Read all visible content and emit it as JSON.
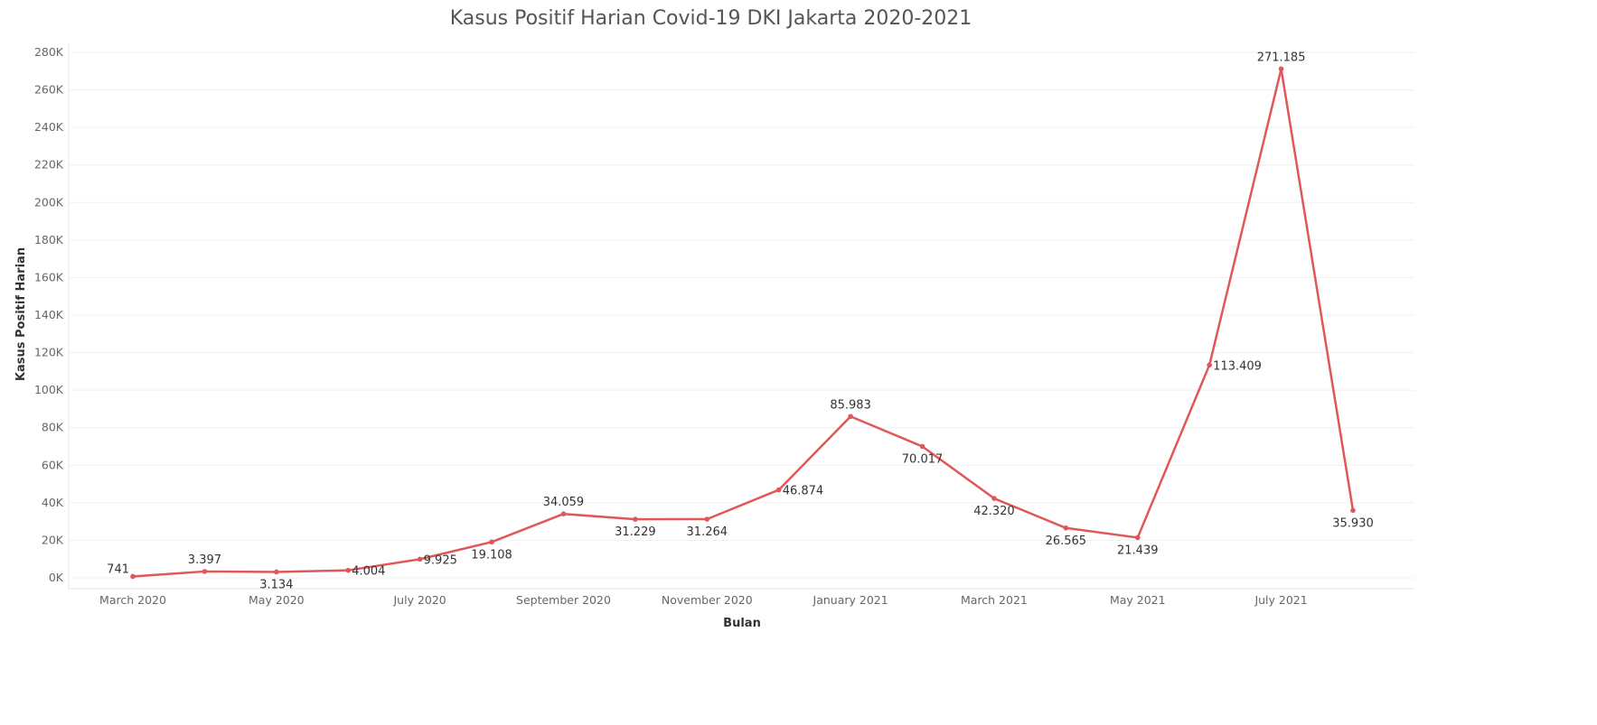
{
  "chart_data": {
    "type": "line",
    "title": "Kasus Positif Harian Covid-19 DKI Jakarta 2020-2021",
    "xlabel": "Bulan",
    "ylabel": "Kasus Positif Harian",
    "x": [
      "2020-03",
      "2020-04",
      "2020-05",
      "2020-06",
      "2020-07",
      "2020-08",
      "2020-09",
      "2020-10",
      "2020-11",
      "2020-12",
      "2021-01",
      "2021-02",
      "2021-03",
      "2021-04",
      "2021-05",
      "2021-06",
      "2021-07",
      "2021-08"
    ],
    "x_tick_labels": [
      {
        "x": "2020-03",
        "label": "March 2020"
      },
      {
        "x": "2020-05",
        "label": "May 2020"
      },
      {
        "x": "2020-07",
        "label": "July 2020"
      },
      {
        "x": "2020-09",
        "label": "September 2020"
      },
      {
        "x": "2020-11",
        "label": "November 2020"
      },
      {
        "x": "2021-01",
        "label": "January 2021"
      },
      {
        "x": "2021-03",
        "label": "March 2021"
      },
      {
        "x": "2021-05",
        "label": "May 2021"
      },
      {
        "x": "2021-07",
        "label": "July 2021"
      }
    ],
    "series": [
      {
        "values": [
          741,
          3397,
          3134,
          4004,
          9925,
          19108,
          34059,
          31229,
          31264,
          46874,
          85983,
          70017,
          42320,
          26565,
          21439,
          113409,
          271185,
          35930
        ],
        "value_labels": [
          "741",
          "3.397",
          "3.134",
          "4.004",
          "9.925",
          "19.108",
          "34.059",
          "31.229",
          "31.264",
          "46.874",
          "85.983",
          "70.017",
          "42.320",
          "26.565",
          "21.439",
          "113.409",
          "271.185",
          "35.930"
        ],
        "color": "#e05759"
      }
    ],
    "y_ticks": [
      {
        "value": 0,
        "label": "0K"
      },
      {
        "value": 20000,
        "label": "20K"
      },
      {
        "value": 40000,
        "label": "40K"
      },
      {
        "value": 60000,
        "label": "60K"
      },
      {
        "value": 80000,
        "label": "80K"
      },
      {
        "value": 100000,
        "label": "100K"
      },
      {
        "value": 120000,
        "label": "120K"
      },
      {
        "value": 140000,
        "label": "140K"
      },
      {
        "value": 160000,
        "label": "160K"
      },
      {
        "value": 180000,
        "label": "180K"
      },
      {
        "value": 200000,
        "label": "200K"
      },
      {
        "value": 220000,
        "label": "220K"
      },
      {
        "value": 240000,
        "label": "240K"
      },
      {
        "value": 260000,
        "label": "260K"
      },
      {
        "value": 280000,
        "label": "280K"
      }
    ],
    "ylim": [
      0,
      280000
    ],
    "grid": true,
    "legend": "none"
  }
}
